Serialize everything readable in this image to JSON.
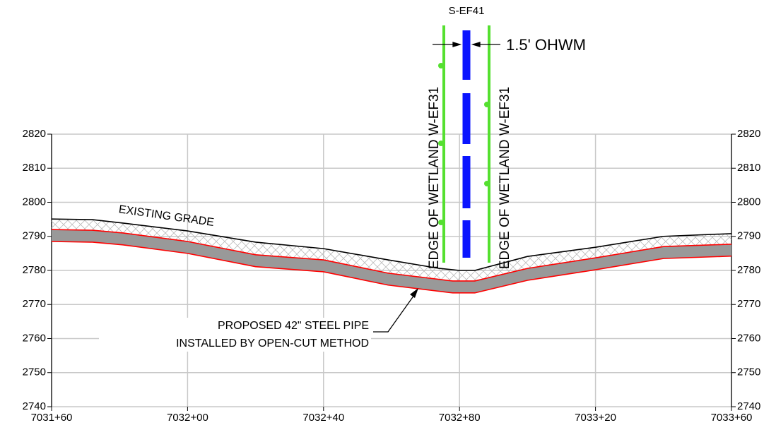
{
  "chart_data": {
    "type": "line",
    "annotations": {
      "stream": "S-EF41",
      "ohwm": "1.5' OHWM",
      "wetland_left": "EDGE OF WETLAND W-EF31",
      "wetland_right": "EDGE OF WETLAND W-EF31",
      "grade": "EXISTING GRADE",
      "pipe_line1": "PROPOSED 42\" STEEL PIPE",
      "pipe_line2": "INSTALLED BY OPEN-CUT METHOD"
    },
    "xlim": [
      703160,
      703360
    ],
    "xticks": [
      {
        "value": 703160,
        "label": "7031+60"
      },
      {
        "value": 703200,
        "label": "7032+00"
      },
      {
        "value": 703240,
        "label": "7032+40"
      },
      {
        "value": 703280,
        "label": "7032+80"
      },
      {
        "value": 703320,
        "label": "7033+20"
      },
      {
        "value": 703360,
        "label": "7033+60"
      }
    ],
    "ylim": [
      2740,
      2820
    ],
    "yticks": [
      2740,
      2750,
      2760,
      2770,
      2780,
      2790,
      2800,
      2810,
      2820
    ],
    "grid": true,
    "series": [
      {
        "color": "#000000",
        "x": [
          703160,
          703172,
          703181,
          703200,
          703220,
          703240,
          703259,
          703274,
          703280,
          703284.5,
          703300,
          703320,
          703340,
          703360
        ],
        "values": [
          2795.1,
          2794.9,
          2793.9,
          2791.6,
          2788.3,
          2786.4,
          2783.1,
          2780.6,
          2780,
          2780,
          2784.1,
          2786.8,
          2790,
          2790.8
        ]
      },
      {
        "color": "#ff0000",
        "x": [
          703160,
          703172,
          703181,
          703200,
          703220,
          703240,
          703259,
          703278,
          703284.5,
          703300,
          703320,
          703340,
          703360
        ],
        "values": [
          2792,
          2791.8,
          2791,
          2788.5,
          2784.6,
          2783.1,
          2779.2,
          2776.9,
          2776.9,
          2780.6,
          2783.7,
          2787,
          2787.7
        ]
      },
      {
        "color": "#ff0000",
        "x": [
          703160,
          703172,
          703181,
          703200,
          703220,
          703240,
          703259,
          703278,
          703284.5,
          703300,
          703320,
          703340,
          703360
        ],
        "values": [
          2788.5,
          2788.3,
          2787.5,
          2785,
          2781.1,
          2779.6,
          2775.7,
          2773.4,
          2773.4,
          2777.1,
          2780.2,
          2783.5,
          2784.2
        ]
      }
    ]
  }
}
